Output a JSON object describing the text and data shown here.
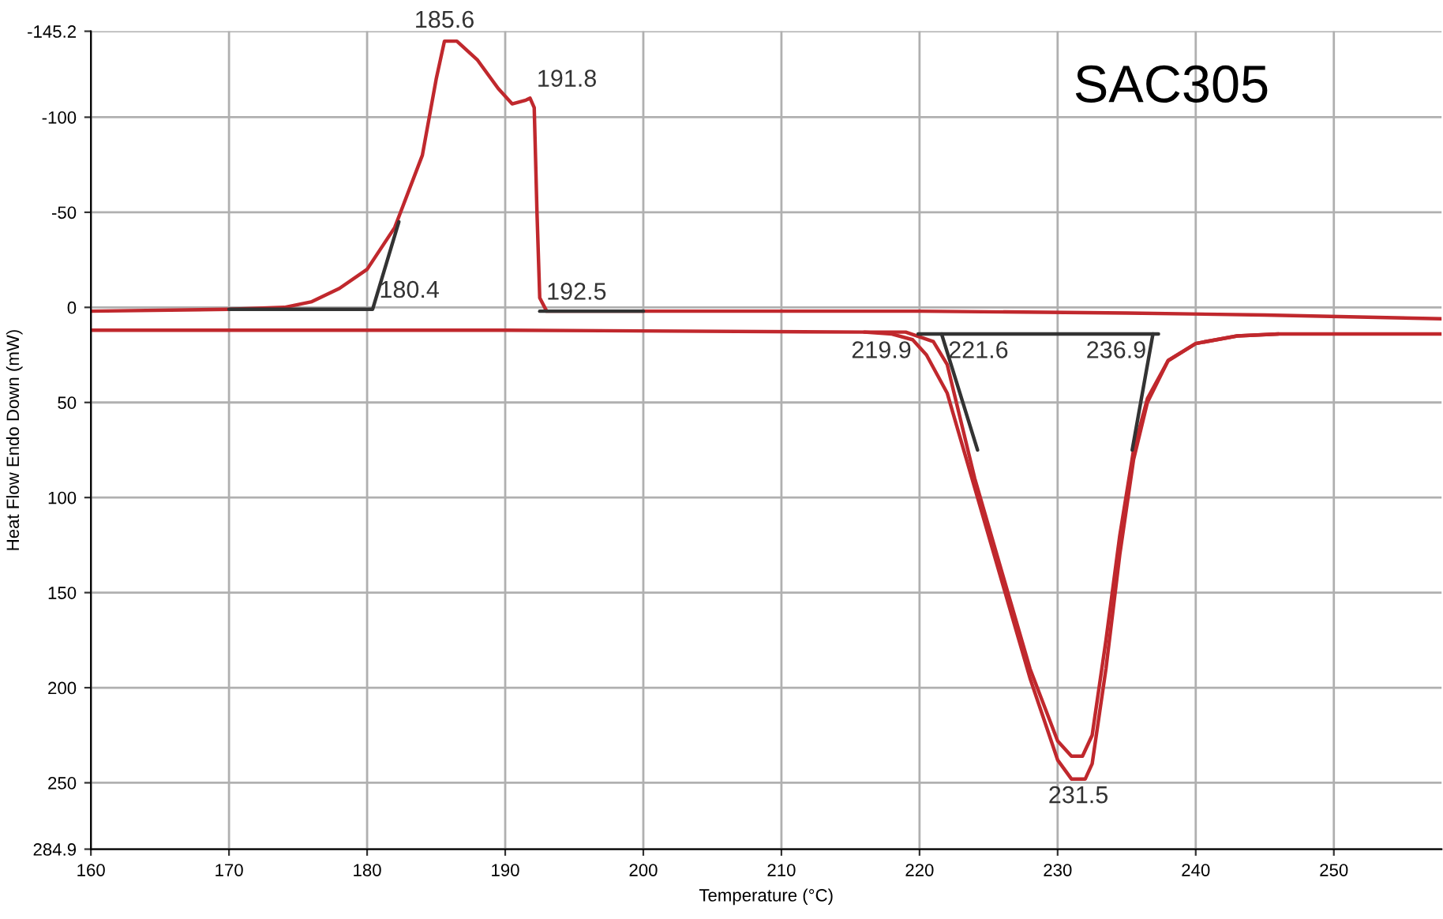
{
  "chart_data": {
    "type": "line",
    "title": "SAC305",
    "xlabel": "Temperature (°C)",
    "ylabel": "Heat Flow Endo Down (mW)",
    "xlim": [
      160,
      257.8
    ],
    "xticks": [
      160,
      170,
      180,
      190,
      200,
      210,
      220,
      230,
      240,
      250
    ],
    "ylim": [
      284.9,
      -145.2
    ],
    "yticks": [
      -145.2,
      -100,
      -50,
      0,
      50,
      100,
      150,
      200,
      250,
      284.9
    ],
    "grid": true,
    "legend": false,
    "series": [
      {
        "color": "#c0282d",
        "x": [
          160,
          170,
          174,
          176,
          178,
          180,
          182,
          184,
          185,
          185.6,
          186.5,
          188,
          189.5,
          190.5,
          191.5,
          191.8,
          192.1,
          192.3,
          192.5,
          193,
          200,
          220,
          235,
          245,
          257.8
        ],
        "values": [
          2,
          1,
          0,
          -3,
          -10,
          -20,
          -42,
          -80,
          -120,
          -140,
          -140,
          -130,
          -115,
          -107,
          -109,
          -110,
          -105,
          -50,
          -5,
          2,
          2,
          2,
          3,
          4,
          6
        ]
      },
      {
        "color": "#c0282d",
        "x": [
          160,
          190,
          216,
          218,
          219.5,
          220.5,
          222,
          224,
          226,
          228,
          230,
          231,
          232,
          232.5,
          233.5,
          234.5,
          235.5,
          236.5,
          238,
          240,
          243,
          246,
          257.8
        ],
        "values": [
          12,
          12,
          13,
          14,
          17,
          25,
          45,
          95,
          145,
          195,
          238,
          248,
          248,
          240,
          190,
          130,
          80,
          50,
          28,
          19,
          15,
          14,
          14
        ]
      },
      {
        "color": "#c0282d",
        "x": [
          216,
          219,
          221,
          222,
          223,
          224,
          226,
          228,
          230,
          231,
          231.8,
          232.5,
          233.5,
          234.5,
          235.5,
          236.5,
          238,
          240,
          243,
          246
        ],
        "values": [
          13,
          13,
          18,
          30,
          60,
          90,
          140,
          190,
          228,
          236,
          236,
          225,
          175,
          120,
          75,
          48,
          28,
          19,
          15,
          14
        ]
      },
      {
        "color": "#333333",
        "x": [
          170,
          180.4,
          182.3
        ],
        "values": [
          1,
          1,
          -45
        ]
      },
      {
        "color": "#333333",
        "x": [
          192.5,
          200
        ],
        "values": [
          2,
          2
        ]
      },
      {
        "color": "#333333",
        "x": [
          219.9,
          237.3
        ],
        "values": [
          14,
          14
        ]
      },
      {
        "color": "#333333",
        "x": [
          221.6,
          224.2
        ],
        "values": [
          14,
          75
        ]
      },
      {
        "color": "#333333",
        "x": [
          236.9,
          235.4
        ],
        "values": [
          14,
          75
        ]
      }
    ],
    "annotations": [
      {
        "text": "185.6",
        "x": 185.6,
        "y": -141
      },
      {
        "text": "191.8",
        "x": 191.8,
        "y": -110
      },
      {
        "text": "180.4",
        "x": 180.4,
        "y": 1
      },
      {
        "text": "192.5",
        "x": 192.5,
        "y": 2
      },
      {
        "text": "219.9",
        "x": 219.9,
        "y": 14
      },
      {
        "text": "221.6",
        "x": 221.6,
        "y": 14
      },
      {
        "text": "236.9",
        "x": 236.9,
        "y": 14
      },
      {
        "text": "231.5",
        "x": 231.5,
        "y": 248
      }
    ]
  }
}
